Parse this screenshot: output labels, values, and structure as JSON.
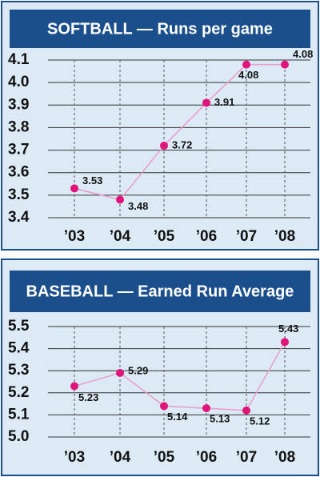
{
  "chart_data": [
    {
      "type": "line",
      "title": "SOFTBALL — Runs per game",
      "categories": [
        "’03",
        "’04",
        "’05",
        "’06",
        "’07",
        "’08"
      ],
      "series": [
        {
          "name": "Runs per game",
          "color": "#e0147a",
          "values": [
            3.53,
            3.48,
            3.72,
            3.91,
            4.08,
            4.08
          ]
        }
      ],
      "ylim": [
        3.4,
        4.1
      ],
      "yticks": [
        3.4,
        3.5,
        3.6,
        3.7,
        3.8,
        3.9,
        {
          "value": 4,
          "label": "4.0"
        },
        4.1
      ],
      "grid": true
    },
    {
      "type": "line",
      "title": "BASEBALL — Earned Run Average",
      "categories": [
        "’03",
        "’04",
        "’05",
        "’06",
        "’07",
        "’08"
      ],
      "series": [
        {
          "name": "Earned Run Average",
          "color": "#e0147a",
          "values": [
            5.23,
            5.29,
            5.14,
            5.13,
            5.12,
            5.43
          ]
        }
      ],
      "ylim": [
        5.0,
        5.5
      ],
      "yticks": [
        {
          "value": 5,
          "label": "5.0"
        },
        5.1,
        5.2,
        5.3,
        5.4,
        5.5
      ],
      "grid": true
    }
  ]
}
